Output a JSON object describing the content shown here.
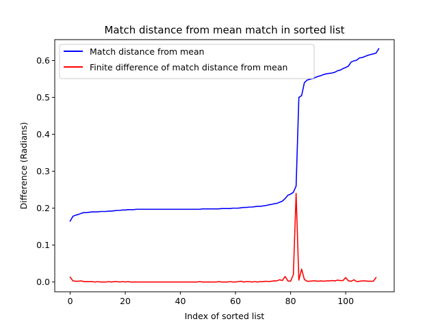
{
  "chart_data": {
    "type": "line",
    "title": "Match distance from mean match in sorted list",
    "xlabel": "Index of sorted list",
    "ylabel": "Difference (Radians)",
    "xlim": [
      -5.6,
      117.6
    ],
    "ylim": [
      -0.0265,
      0.6565
    ],
    "x_ticks": [
      0,
      20,
      40,
      60,
      80,
      100
    ],
    "x_tick_labels": [
      "0",
      "20",
      "40",
      "60",
      "80",
      "100"
    ],
    "y_ticks": [
      0.0,
      0.1,
      0.2,
      0.3,
      0.4,
      0.5,
      0.6
    ],
    "y_tick_labels": [
      "0.0",
      "0.1",
      "0.2",
      "0.3",
      "0.4",
      "0.5",
      "0.6"
    ],
    "grid": false,
    "legend_position": "upper-left",
    "series": [
      {
        "name": "Match distance from mean",
        "color": "#0000ff",
        "x": [
          0,
          1,
          2,
          3,
          4,
          5,
          6,
          7,
          8,
          9,
          10,
          11,
          12,
          13,
          14,
          15,
          16,
          17,
          18,
          19,
          20,
          21,
          22,
          23,
          24,
          25,
          26,
          27,
          28,
          29,
          30,
          31,
          32,
          33,
          34,
          35,
          36,
          37,
          38,
          39,
          40,
          41,
          42,
          43,
          44,
          45,
          46,
          47,
          48,
          49,
          50,
          51,
          52,
          53,
          54,
          55,
          56,
          57,
          58,
          59,
          60,
          61,
          62,
          63,
          64,
          65,
          66,
          67,
          68,
          69,
          70,
          71,
          72,
          73,
          74,
          75,
          76,
          77,
          78,
          79,
          80,
          81,
          82,
          83,
          84,
          85,
          86,
          87,
          88,
          89,
          90,
          91,
          92,
          93,
          94,
          95,
          96,
          97,
          98,
          99,
          100,
          101,
          102,
          103,
          104,
          105,
          106,
          107,
          108,
          109,
          110,
          111,
          112
        ],
        "y": [
          0.165,
          0.178,
          0.181,
          0.183,
          0.186,
          0.188,
          0.188,
          0.189,
          0.19,
          0.19,
          0.19,
          0.191,
          0.191,
          0.191,
          0.192,
          0.192,
          0.193,
          0.194,
          0.194,
          0.195,
          0.195,
          0.196,
          0.196,
          0.196,
          0.197,
          0.197,
          0.197,
          0.197,
          0.197,
          0.197,
          0.197,
          0.197,
          0.197,
          0.197,
          0.197,
          0.197,
          0.197,
          0.197,
          0.197,
          0.197,
          0.197,
          0.197,
          0.197,
          0.197,
          0.197,
          0.197,
          0.197,
          0.197,
          0.198,
          0.198,
          0.198,
          0.198,
          0.198,
          0.198,
          0.198,
          0.199,
          0.199,
          0.199,
          0.199,
          0.2,
          0.2,
          0.2,
          0.201,
          0.202,
          0.202,
          0.203,
          0.203,
          0.204,
          0.205,
          0.205,
          0.206,
          0.207,
          0.209,
          0.21,
          0.212,
          0.213,
          0.216,
          0.219,
          0.226,
          0.235,
          0.238,
          0.243,
          0.26,
          0.5,
          0.505,
          0.54,
          0.547,
          0.549,
          0.551,
          0.554,
          0.557,
          0.559,
          0.562,
          0.564,
          0.565,
          0.566,
          0.568,
          0.572,
          0.574,
          0.578,
          0.581,
          0.585,
          0.596,
          0.599,
          0.601,
          0.607,
          0.608,
          0.611,
          0.614,
          0.616,
          0.618,
          0.62,
          0.632
        ]
      },
      {
        "name": "Finite difference of match distance from mean",
        "color": "#ff0000",
        "x": [
          0,
          1,
          2,
          3,
          4,
          5,
          6,
          7,
          8,
          9,
          10,
          11,
          12,
          13,
          14,
          15,
          16,
          17,
          18,
          19,
          20,
          21,
          22,
          23,
          24,
          25,
          26,
          27,
          28,
          29,
          30,
          31,
          32,
          33,
          34,
          35,
          36,
          37,
          38,
          39,
          40,
          41,
          42,
          43,
          44,
          45,
          46,
          47,
          48,
          49,
          50,
          51,
          52,
          53,
          54,
          55,
          56,
          57,
          58,
          59,
          60,
          61,
          62,
          63,
          64,
          65,
          66,
          67,
          68,
          69,
          70,
          71,
          72,
          73,
          74,
          75,
          76,
          77,
          78,
          79,
          80,
          81,
          82,
          83,
          84,
          85,
          86,
          87,
          88,
          89,
          90,
          91,
          92,
          93,
          94,
          95,
          96,
          97,
          98,
          99,
          100,
          101,
          102,
          103,
          104,
          105,
          106,
          107,
          108,
          109,
          110,
          111
        ],
        "y": [
          0.013,
          0.003,
          0.002,
          0.002,
          0.003,
          0.001,
          0.001,
          0.001,
          0.001,
          0.0,
          0.001,
          0.0,
          0.0,
          0.0,
          0.001,
          0.0,
          0.001,
          0.001,
          0.0,
          0.001,
          0.0,
          0.001,
          0.0,
          0.0,
          0.0,
          0.0,
          0.0,
          0.0,
          0.0,
          0.0,
          0.0,
          0.0,
          0.0,
          0.0,
          0.0,
          0.0,
          0.0,
          0.0,
          0.0,
          0.0,
          0.0,
          0.0,
          0.0,
          0.0,
          0.0,
          0.0,
          0.0,
          0.001,
          0.0,
          0.0,
          0.0,
          0.0,
          0.0,
          0.0,
          0.001,
          0.0,
          0.0,
          0.0,
          0.001,
          0.0,
          0.0,
          0.001,
          0.002,
          0.0,
          0.001,
          0.001,
          0.0,
          0.001,
          0.0,
          0.001,
          0.001,
          0.002,
          0.001,
          0.002,
          0.003,
          0.003,
          0.006,
          0.004,
          0.015,
          0.003,
          0.002,
          0.02,
          0.24,
          0.005,
          0.035,
          0.007,
          0.002,
          0.002,
          0.003,
          0.003,
          0.002,
          0.003,
          0.002,
          0.003,
          0.003,
          0.004,
          0.003,
          0.005,
          0.004,
          0.004,
          0.012,
          0.003,
          0.002,
          0.006,
          0.001,
          0.002,
          0.003,
          0.003,
          0.002,
          0.002,
          0.002,
          0.012
        ]
      }
    ]
  }
}
